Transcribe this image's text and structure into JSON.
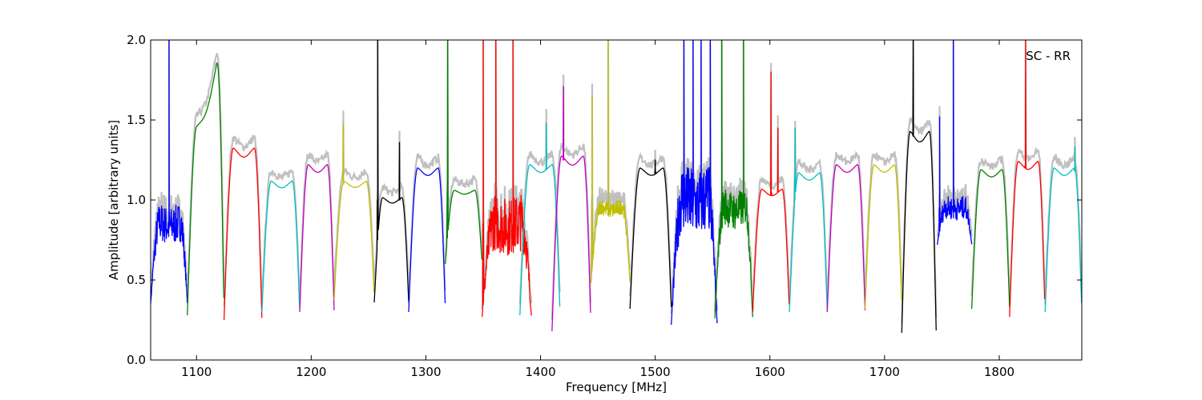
{
  "chart_data": {
    "type": "line",
    "xlabel": "Frequency [MHz]",
    "ylabel": "Amplitude [arbitrary units]",
    "xlim": [
      1060,
      1872
    ],
    "ylim": [
      0.0,
      2.0
    ],
    "x_ticks": [
      1100,
      1200,
      1300,
      1400,
      1500,
      1600,
      1700,
      1800
    ],
    "x_tick_labels": [
      "1100",
      "1200",
      "1300",
      "1400",
      "1500",
      "1600",
      "1700",
      "1800"
    ],
    "y_ticks": [
      0.0,
      0.5,
      1.0,
      1.5,
      2.0
    ],
    "y_tick_labels": [
      "0.0",
      "0.5",
      "1.0",
      "1.5",
      "2.0"
    ],
    "annotation": "SC - RR",
    "grid": false,
    "background_color": "#c0c0c0",
    "series": [
      {
        "color": "#0000ff",
        "start": 1060,
        "end": 1092,
        "level": 0.85,
        "edge_low": 0.35,
        "noise": 0.12,
        "spikes": [
          [
            1076,
            2.0
          ]
        ]
      },
      {
        "color": "#008000",
        "start": 1092,
        "end": 1124,
        "level": 1.35,
        "edge_low": 0.28,
        "rise_to": 2.0,
        "spikes": []
      },
      {
        "color": "#ff0000",
        "start": 1124,
        "end": 1157,
        "level": 1.3,
        "edge_low": 0.25,
        "spikes": []
      },
      {
        "color": "#00bfbf",
        "start": 1157,
        "end": 1190,
        "level": 1.1,
        "edge_low": 0.3,
        "spikes": []
      },
      {
        "color": "#bf00bf",
        "start": 1190,
        "end": 1220,
        "level": 1.2,
        "edge_low": 0.3,
        "spikes": []
      },
      {
        "color": "#bfbf00",
        "start": 1220,
        "end": 1255,
        "level": 1.1,
        "edge_low": 0.38,
        "spikes": [
          [
            1228,
            1.48
          ]
        ]
      },
      {
        "color": "#000000",
        "start": 1255,
        "end": 1285,
        "level": 1.0,
        "edge_low": 0.36,
        "spikes": [
          [
            1258,
            2.0
          ],
          [
            1277,
            1.36
          ]
        ]
      },
      {
        "color": "#0000ff",
        "start": 1285,
        "end": 1317,
        "level": 1.18,
        "edge_low": 0.3,
        "spikes": []
      },
      {
        "color": "#008000",
        "start": 1317,
        "end": 1349,
        "level": 1.05,
        "edge_low": 0.6,
        "spikes": [
          [
            1319,
            2.0
          ]
        ]
      },
      {
        "color": "#ff0000",
        "start": 1349,
        "end": 1392,
        "level": 0.85,
        "edge_low": 0.27,
        "noise": 0.18,
        "spikes": [
          [
            1350,
            2.0
          ],
          [
            1361,
            2.0
          ],
          [
            1376,
            2.0
          ]
        ]
      },
      {
        "color": "#00bfbf",
        "start": 1382,
        "end": 1417,
        "level": 1.2,
        "edge_low": 0.28,
        "spikes": [
          [
            1405,
            1.48
          ]
        ]
      },
      {
        "color": "#bf00bf",
        "start": 1410,
        "end": 1444,
        "level": 1.25,
        "edge_low": 0.18,
        "spikes": [
          [
            1420,
            1.71
          ]
        ]
      },
      {
        "color": "#bfbf00",
        "start": 1444,
        "end": 1478,
        "level": 0.95,
        "edge_low": 0.48,
        "noise": 0.05,
        "spikes": [
          [
            1445,
            1.65
          ],
          [
            1459,
            2.0
          ]
        ]
      },
      {
        "color": "#000000",
        "start": 1478,
        "end": 1514,
        "level": 1.18,
        "edge_low": 0.32,
        "spikes": [
          [
            1500,
            1.25
          ]
        ]
      },
      {
        "color": "#0000ff",
        "start": 1514,
        "end": 1554,
        "level": 1.0,
        "edge_low": 0.22,
        "noise": 0.22,
        "spikes": [
          [
            1525,
            2.0
          ],
          [
            1533,
            2.0
          ],
          [
            1540,
            2.0
          ],
          [
            1548,
            2.0
          ]
        ]
      },
      {
        "color": "#008000",
        "start": 1552,
        "end": 1585,
        "level": 0.95,
        "edge_low": 0.26,
        "noise": 0.12,
        "spikes": [
          [
            1558,
            2.0
          ],
          [
            1577,
            2.0
          ]
        ]
      },
      {
        "color": "#ff0000",
        "start": 1585,
        "end": 1617,
        "level": 1.05,
        "edge_low": 0.3,
        "spikes": [
          [
            1601,
            1.8
          ],
          [
            1607,
            1.45
          ]
        ]
      },
      {
        "color": "#00bfbf",
        "start": 1617,
        "end": 1650,
        "level": 1.15,
        "edge_low": 0.3,
        "spikes": [
          [
            1622,
            1.45
          ]
        ]
      },
      {
        "color": "#bf00bf",
        "start": 1650,
        "end": 1683,
        "level": 1.2,
        "edge_low": 0.3,
        "spikes": []
      },
      {
        "color": "#bfbf00",
        "start": 1683,
        "end": 1715,
        "level": 1.2,
        "edge_low": 0.32,
        "spikes": []
      },
      {
        "color": "#000000",
        "start": 1715,
        "end": 1745,
        "level": 1.4,
        "edge_low": 0.17,
        "spikes": [
          [
            1725,
            2.0
          ]
        ]
      },
      {
        "color": "#0000ff",
        "start": 1746,
        "end": 1776,
        "level": 0.95,
        "edge_low": 0.72,
        "noise": 0.07,
        "spikes": [
          [
            1748,
            1.52
          ],
          [
            1760,
            2.0
          ]
        ]
      },
      {
        "color": "#008000",
        "start": 1776,
        "end": 1809,
        "level": 1.17,
        "edge_low": 0.32,
        "spikes": []
      },
      {
        "color": "#ff0000",
        "start": 1809,
        "end": 1840,
        "level": 1.22,
        "edge_low": 0.27,
        "spikes": [
          [
            1823,
            2.0
          ]
        ]
      },
      {
        "color": "#00bfbf",
        "start": 1840,
        "end": 1872,
        "level": 1.18,
        "edge_low": 0.3,
        "spikes": [
          [
            1866,
            1.33
          ]
        ]
      }
    ]
  }
}
